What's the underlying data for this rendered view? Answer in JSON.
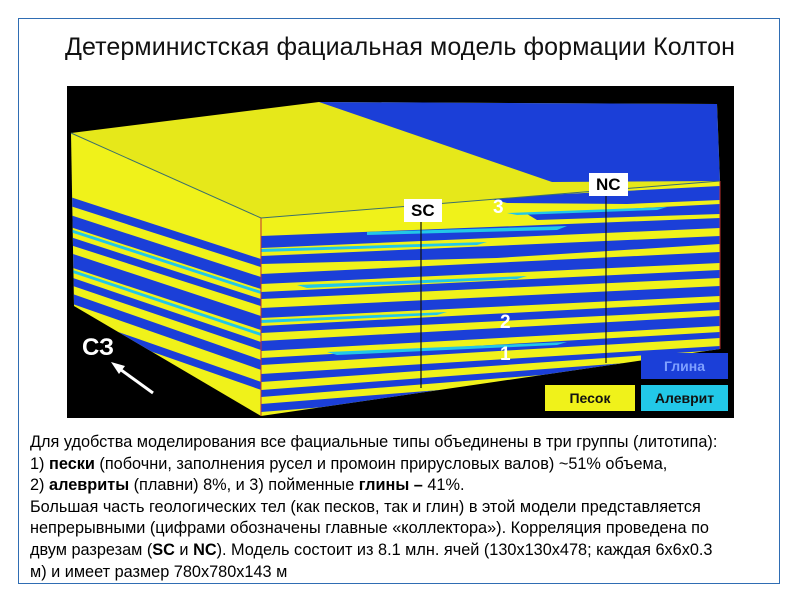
{
  "title": "Детерминистская фациальная модель формации Колтон",
  "model": {
    "section_labels": {
      "sc": "SC",
      "nc": "NC"
    },
    "reservoir_numbers": [
      "1",
      "2",
      "3"
    ],
    "direction_label": "СЗ",
    "colors": {
      "sand": "#f0f21a",
      "clay": "#1b3fd8",
      "silt": "#22c8e8",
      "background": "#000000"
    },
    "legend": {
      "clay": "Глина",
      "sand": "Песок",
      "silt": "Алеврит"
    }
  },
  "description": {
    "line1": "Для удобства моделирования все фациальные типы объединены в три группы (литотипа):",
    "line2_pre": "1) ",
    "line2_bold": "пески",
    "line2_post": " (побочни, заполнения русел и промоин прирусловых валов) ~51% объема,",
    "line3_pre": "2) ",
    "line3_bold": "алевриты",
    "line3_mid": " (плавни) 8%, и 3) пойменные ",
    "line3_bold2": "глины – ",
    "line3_post": "41%.",
    "line4": "Большая часть геологических тел (как песков, так и глин) в этой модели представляется",
    "line5": "непрерывными (цифрами обозначены главные «коллектора»). Корреляция проведена по",
    "line6_pre": "двум разрезам (",
    "line6_b1": "SC",
    "line6_mid": " и ",
    "line6_b2": "NC",
    "line6_post": "). Модель состоит из 8.1 млн. ячей (130x130x478; каждая 6x6x0.3",
    "line7": "м) и имеет размер 780x780x143 м"
  }
}
